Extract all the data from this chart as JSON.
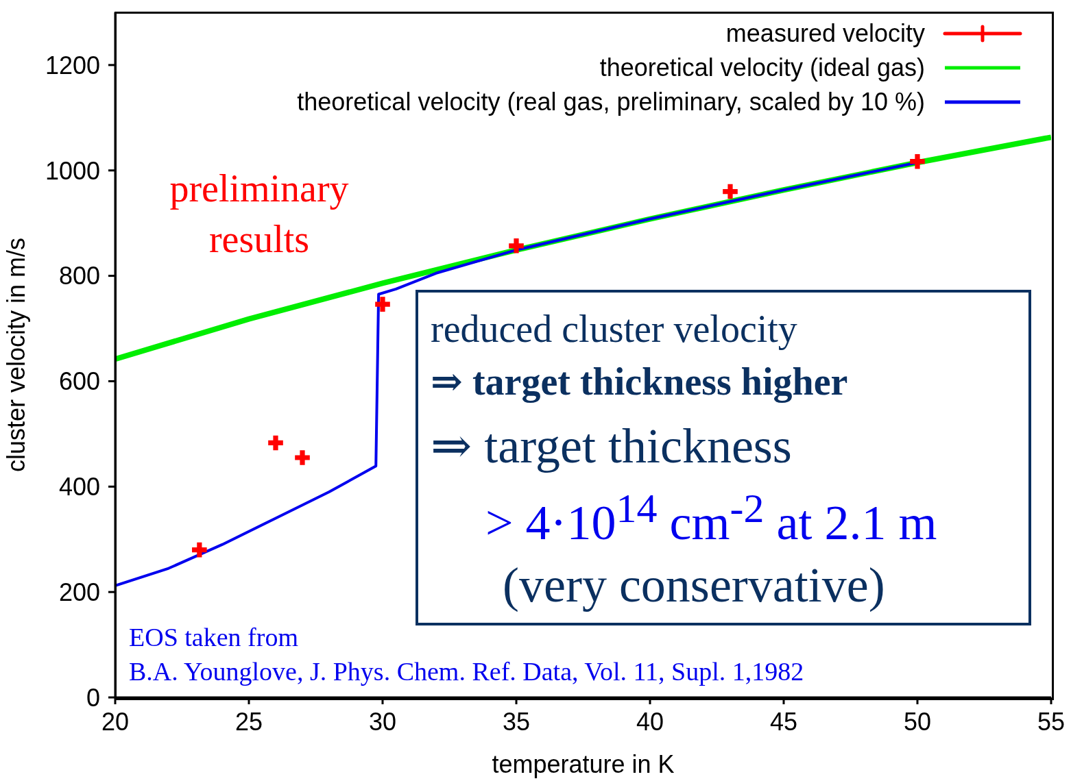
{
  "chart_data": {
    "type": "line",
    "xlabel": "temperature in K",
    "ylabel": "cluster velocity in m/s",
    "xlim": [
      20,
      55
    ],
    "xticks": [
      20,
      25,
      30,
      35,
      40,
      45,
      50,
      55
    ],
    "ylim": [
      0,
      1300
    ],
    "yticks": [
      0,
      200,
      400,
      600,
      800,
      1000,
      1200
    ],
    "legend": "top right",
    "line_style": "solid",
    "series": [
      {
        "name": "measured velocity",
        "type": "scatter",
        "marker": "cross",
        "color": "#ff0000",
        "x": [
          23.15,
          26.0,
          27.0,
          30.0,
          35.0,
          43.0,
          50.0
        ],
        "values": [
          280,
          483,
          455,
          746,
          857,
          960,
          1017
        ]
      },
      {
        "name": "theoretical velocity (ideal gas)",
        "color": "#00ee00",
        "x": [
          20,
          25,
          30,
          35,
          40,
          45,
          50,
          55
        ],
        "values": [
          642,
          718,
          786,
          849,
          908,
          963,
          1015,
          1063
        ]
      },
      {
        "name": "theoretical velocity (real gas, preliminary, scaled by 10 %)",
        "color": "#0000ee",
        "x": [
          20,
          22,
          24,
          26,
          28,
          29.75,
          29.85,
          30.5,
          32,
          35,
          40,
          45,
          50
        ],
        "values": [
          212,
          245,
          290,
          340,
          390,
          439,
          765,
          775,
          805,
          849,
          908,
          963,
          1015
        ]
      }
    ],
    "annotations": [
      "preliminary results",
      "reduced cluster velocity",
      "⇒ target thickness higher",
      "⇒ target thickness",
      "> 4·10$^{14}$ cm$^{-2}$ at 2.1 m",
      "(very conservative)",
      "EOS taken from",
      "B.A. Younglove, J. Phys. Chem. Ref. Data, Vol. 11, Supl. 1,1982"
    ]
  }
}
